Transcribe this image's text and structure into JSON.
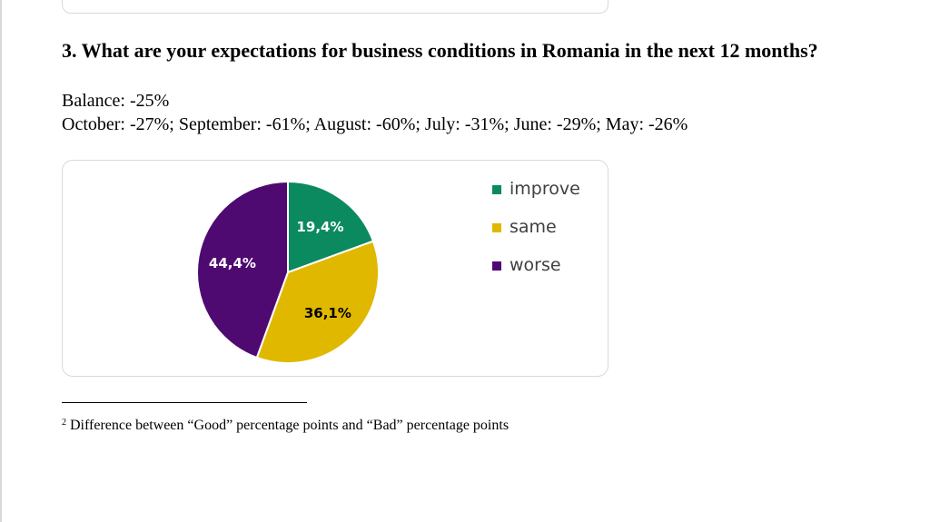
{
  "question": {
    "title": "3. What are your expectations for business conditions in Romania in the next 12 months?",
    "balance": "Balance: -25%",
    "history": "October: -27%; September: -61%; August: -60%; July: -31%; June: -29%; May: -26%"
  },
  "chart_data": {
    "type": "pie",
    "categories": [
      "improve",
      "same",
      "worse"
    ],
    "values": [
      19.4,
      36.1,
      44.4
    ],
    "labels": [
      "19,4%",
      "36,1%",
      "44,4%"
    ],
    "colors": [
      "#0b8a5f",
      "#e0b800",
      "#4f0a72"
    ],
    "label_colors": [
      "#ffffff",
      "#000000",
      "#ffffff"
    ],
    "legend_position": "right"
  },
  "legend": {
    "items": [
      {
        "label": "improve",
        "color": "#0b8a5f"
      },
      {
        "label": "same",
        "color": "#e0b800"
      },
      {
        "label": "worse",
        "color": "#4f0a72"
      }
    ]
  },
  "footnote": {
    "marker": "2",
    "text": " Difference between “Good” percentage points and “Bad” percentage points"
  }
}
